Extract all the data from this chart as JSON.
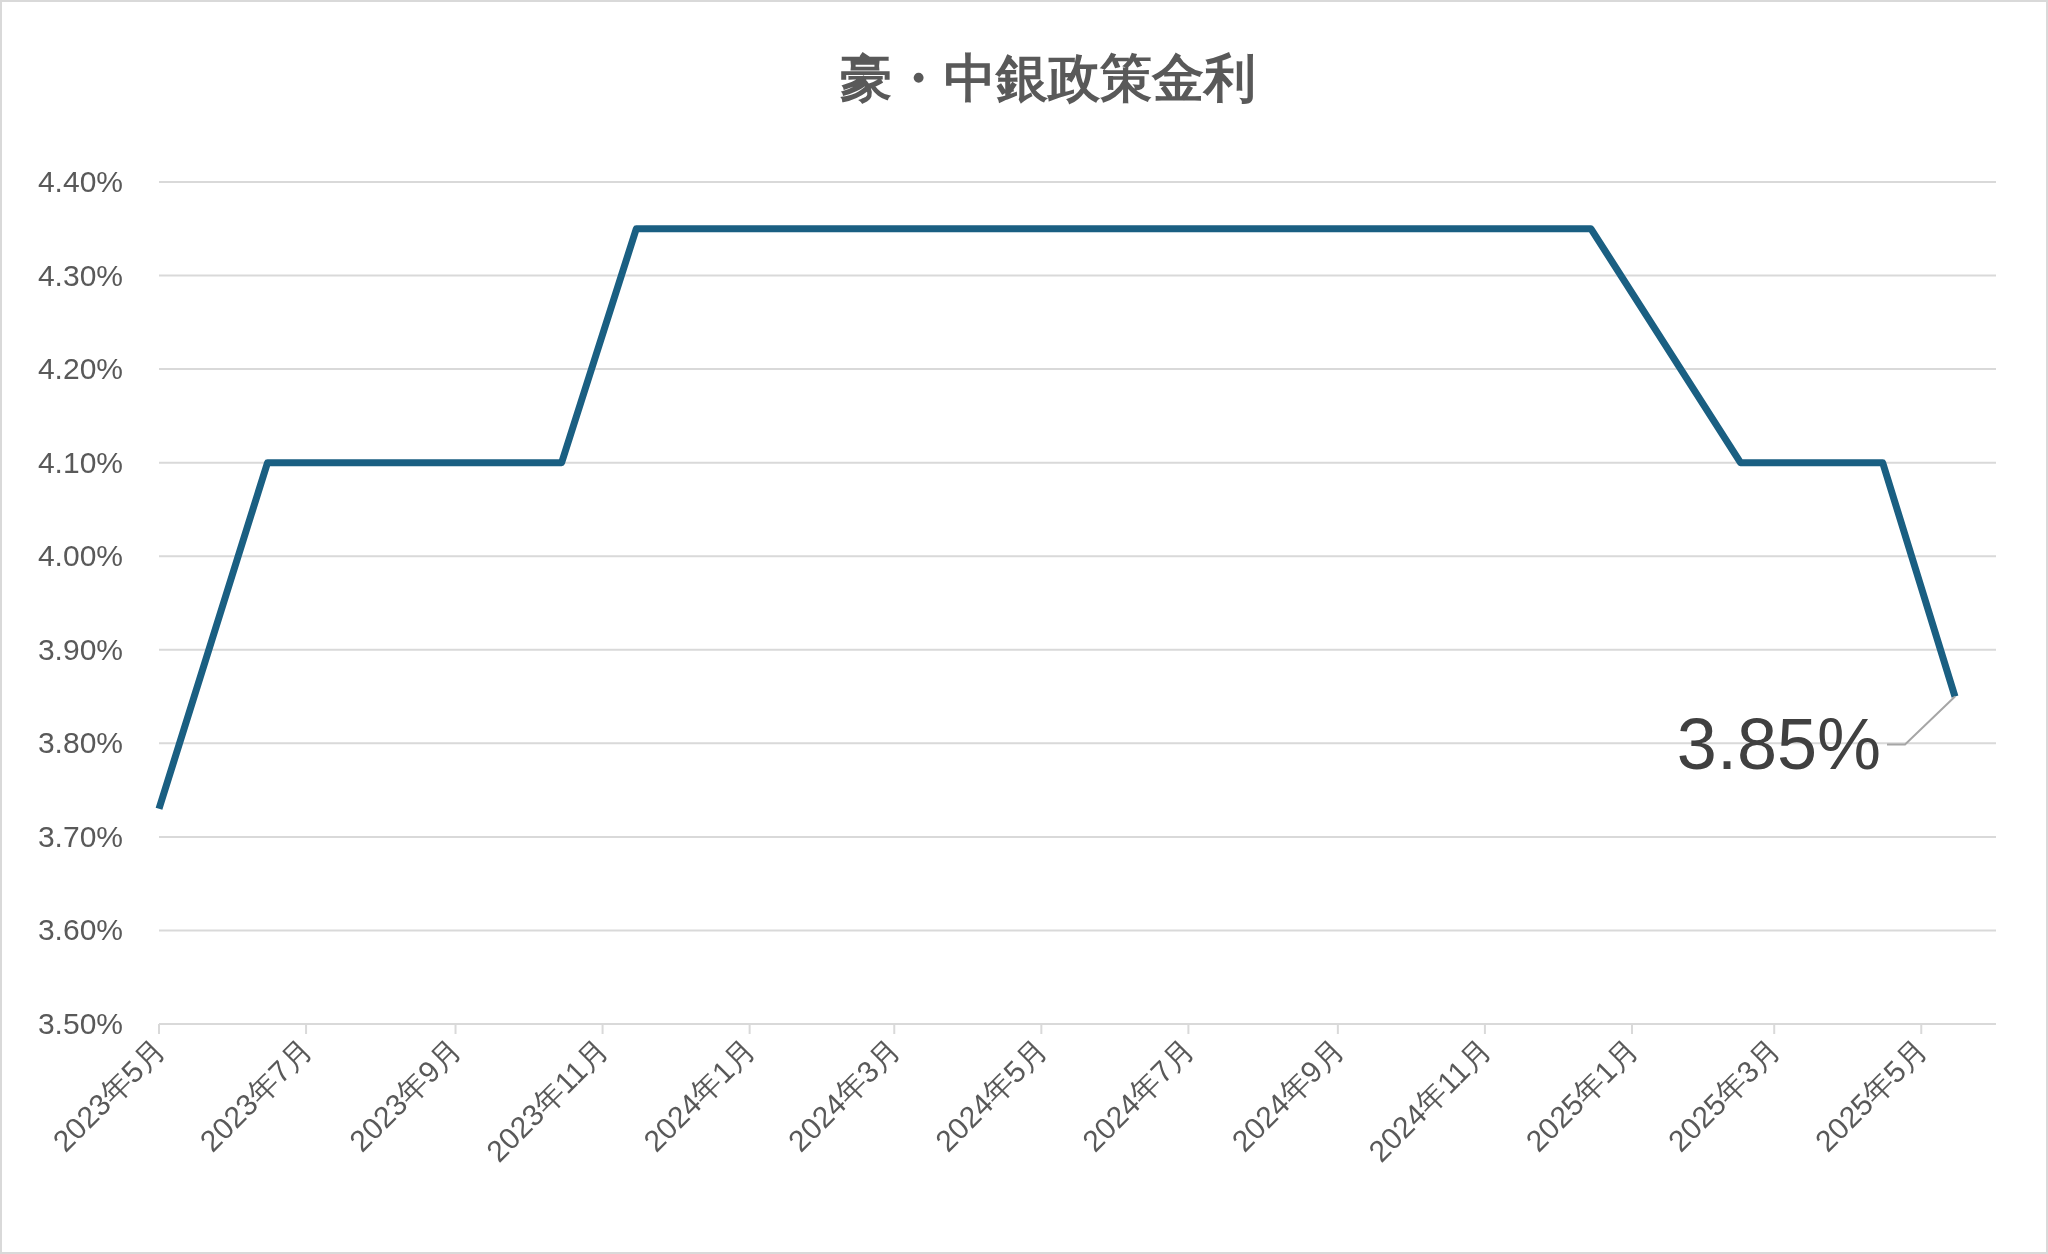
{
  "chart_data": {
    "type": "line",
    "title": "豪・中銀政策金利",
    "x": [
      "2023-05-01",
      "2023-06-15",
      "2023-10-15",
      "2023-11-15",
      "2024-12-15",
      "2025-02-15",
      "2025-04-15",
      "2025-05-15"
    ],
    "series": [
      {
        "color": "#1a5f82",
        "values": [
          3.73,
          4.1,
          4.1,
          4.35,
          4.35,
          4.1,
          4.1,
          3.85
        ]
      }
    ],
    "xlim": [
      "2023-05-01",
      "2025-06-01"
    ],
    "xticks": [
      {
        "value": "2023-05-01",
        "label": "2023年5月"
      },
      {
        "value": "2023-07-01",
        "label": "2023年7月"
      },
      {
        "value": "2023-09-01",
        "label": "2023年9月"
      },
      {
        "value": "2023-11-01",
        "label": "2023年11月"
      },
      {
        "value": "2024-01-01",
        "label": "2024年1月"
      },
      {
        "value": "2024-03-01",
        "label": "2024年3月"
      },
      {
        "value": "2024-05-01",
        "label": "2024年5月"
      },
      {
        "value": "2024-07-01",
        "label": "2024年7月"
      },
      {
        "value": "2024-09-01",
        "label": "2024年9月"
      },
      {
        "value": "2024-11-01",
        "label": "2024年11月"
      },
      {
        "value": "2025-01-01",
        "label": "2025年1月"
      },
      {
        "value": "2025-03-01",
        "label": "2025年3月"
      },
      {
        "value": "2025-05-01",
        "label": "2025年5月"
      }
    ],
    "ylim": [
      3.5,
      4.4
    ],
    "yticks": [
      {
        "value": 3.5,
        "label": "3.50%"
      },
      {
        "value": 3.6,
        "label": "3.60%"
      },
      {
        "value": 3.7,
        "label": "3.70%"
      },
      {
        "value": 3.8,
        "label": "3.80%"
      },
      {
        "value": 3.9,
        "label": "3.90%"
      },
      {
        "value": 4.0,
        "label": "4.00%"
      },
      {
        "value": 4.1,
        "label": "4.10%"
      },
      {
        "value": 4.2,
        "label": "4.20%"
      },
      {
        "value": 4.3,
        "label": "4.30%"
      },
      {
        "value": 4.4,
        "label": "4.40%"
      }
    ],
    "grid": "y",
    "marker": "none",
    "line_style": "solid",
    "annotations": [
      {
        "text": "3.85%",
        "x": "2025-05-15",
        "y": 3.85
      }
    ]
  }
}
